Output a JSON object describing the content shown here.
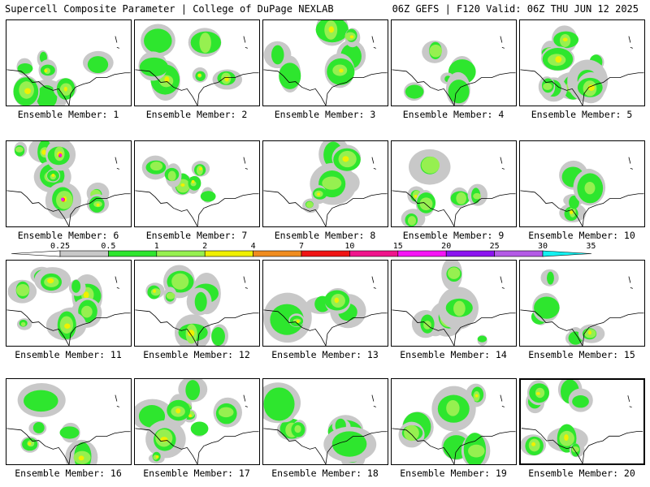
{
  "header": {
    "left_title": "Supercell Composite Parameter | College of DuPage NEXLAB",
    "right_title": "06Z GEFS | F120 Valid: 06Z THU JUN 12 2025"
  },
  "panels": [
    {
      "label": "Ensemble Member: 1",
      "member": 1
    },
    {
      "label": "Ensemble Member: 2",
      "member": 2
    },
    {
      "label": "Ensemble Member: 3",
      "member": 3
    },
    {
      "label": "Ensemble Member: 4",
      "member": 4
    },
    {
      "label": "Ensemble Member: 5",
      "member": 5
    },
    {
      "label": "Ensemble Member: 6",
      "member": 6
    },
    {
      "label": "Ensemble Member: 7",
      "member": 7
    },
    {
      "label": "Ensemble Member: 8",
      "member": 8
    },
    {
      "label": "Ensemble Member: 9",
      "member": 9
    },
    {
      "label": "Ensemble Member: 10",
      "member": 10
    },
    {
      "label": "Ensemble Member: 11",
      "member": 11
    },
    {
      "label": "Ensemble Member: 12",
      "member": 12
    },
    {
      "label": "Ensemble Member: 13",
      "member": 13
    },
    {
      "label": "Ensemble Member: 14",
      "member": 14
    },
    {
      "label": "Ensemble Member: 15",
      "member": 15
    },
    {
      "label": "Ensemble Member: 16",
      "member": 16
    },
    {
      "label": "Ensemble Member: 17",
      "member": 17
    },
    {
      "label": "Ensemble Member: 18",
      "member": 18
    },
    {
      "label": "Ensemble Member: 19",
      "member": 19
    },
    {
      "label": "Ensemble Member: 20",
      "member": 20
    }
  ],
  "colorbar": {
    "ticks": [
      "0.25",
      "0.5",
      "1",
      "2",
      "4",
      "7",
      "10",
      "15",
      "20",
      "25",
      "30",
      "35"
    ],
    "colors": [
      "#c8c8c8",
      "#2ee62e",
      "#96f050",
      "#f0f000",
      "#f08c1e",
      "#f01414",
      "#f0148c",
      "#f514f5",
      "#8c14f0",
      "#b45ae6",
      "#14f0f0"
    ]
  }
}
